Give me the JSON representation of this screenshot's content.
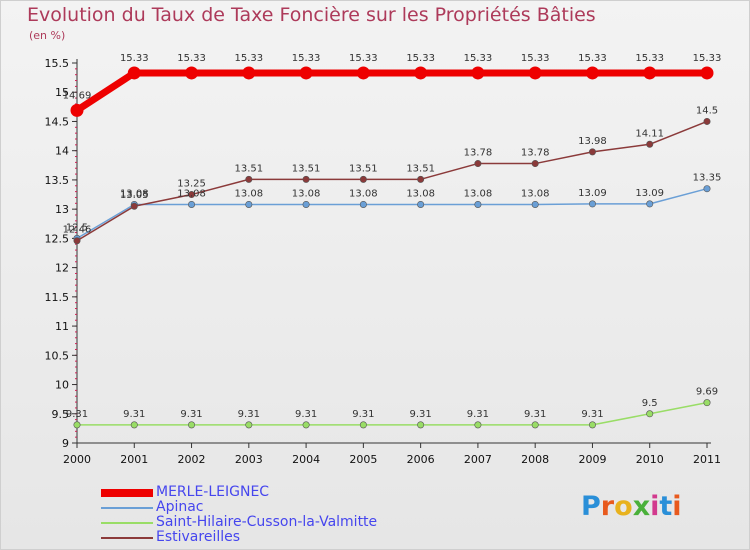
{
  "chart_data": {
    "type": "line",
    "title": "Evolution du Taux de Taxe Foncière sur les Propriétés Bâties",
    "unit_label": "(en %)",
    "xlabel": "",
    "ylabel": "",
    "categories": [
      "2000",
      "2001",
      "2002",
      "2003",
      "2004",
      "2005",
      "2006",
      "2007",
      "2008",
      "2009",
      "2010",
      "2011"
    ],
    "ylim": [
      9,
      15.5
    ],
    "yticks": [
      "9",
      "9.5",
      "10",
      "10.5",
      "11",
      "11.5",
      "12",
      "12.5",
      "13",
      "13.5",
      "14",
      "14.5",
      "15",
      "15.5"
    ],
    "series": [
      {
        "name": "MERLE-LEIGNEC",
        "color": "#ee0000",
        "values": [
          14.69,
          15.33,
          15.33,
          15.33,
          15.33,
          15.33,
          15.33,
          15.33,
          15.33,
          15.33,
          15.33,
          15.33
        ],
        "labels": [
          "14.69",
          "15.33",
          "15.33",
          "15.33",
          "15.33",
          "15.33",
          "15.33",
          "15.33",
          "15.33",
          "15.33",
          "15.33",
          "15.33"
        ]
      },
      {
        "name": "Apinac",
        "color": "#6a9fd6",
        "values": [
          12.5,
          13.08,
          13.08,
          13.08,
          13.08,
          13.08,
          13.08,
          13.08,
          13.08,
          13.09,
          13.09,
          13.35
        ],
        "labels": [
          "12.5",
          "13.08",
          "13.08",
          "13.08",
          "13.08",
          "13.08",
          "13.08",
          "13.08",
          "13.08",
          "13.09",
          "13.09",
          "13.35"
        ]
      },
      {
        "name": "Saint-Hilaire-Cusson-la-Valmitte",
        "color": "#99dd66",
        "values": [
          9.31,
          9.31,
          9.31,
          9.31,
          9.31,
          9.31,
          9.31,
          9.31,
          9.31,
          9.31,
          9.5,
          9.69
        ],
        "labels": [
          "9.31",
          "9.31",
          "9.31",
          "9.31",
          "9.31",
          "9.31",
          "9.31",
          "9.31",
          "9.31",
          "9.31",
          "9.5",
          "9.69"
        ]
      },
      {
        "name": "Estivareilles",
        "color": "#8b3a3a",
        "values": [
          12.46,
          13.05,
          13.25,
          13.51,
          13.51,
          13.51,
          13.51,
          13.78,
          13.78,
          13.98,
          14.11,
          14.5
        ],
        "labels": [
          "12.46",
          "13.05",
          "13.25",
          "13.51",
          "13.51",
          "13.51",
          "13.51",
          "13.78",
          "13.78",
          "13.98",
          "14.11",
          "14.5"
        ]
      }
    ]
  },
  "legend": [
    {
      "label": "MERLE-LEIGNEC",
      "color": "#ee0000"
    },
    {
      "label": "Apinac",
      "color": "#6a9fd6"
    },
    {
      "label": "Saint-Hilaire-Cusson-la-Valmitte",
      "color": "#99dd66"
    },
    {
      "label": "Estivareilles",
      "color": "#8b3a3a"
    }
  ],
  "brand": {
    "logo_text": "Proxiti",
    "colors": [
      "#2a8fd8",
      "#e85a1e",
      "#e8b21e",
      "#4ab03a",
      "#d23a8e",
      "#2a8fd8",
      "#e85a1e"
    ]
  }
}
